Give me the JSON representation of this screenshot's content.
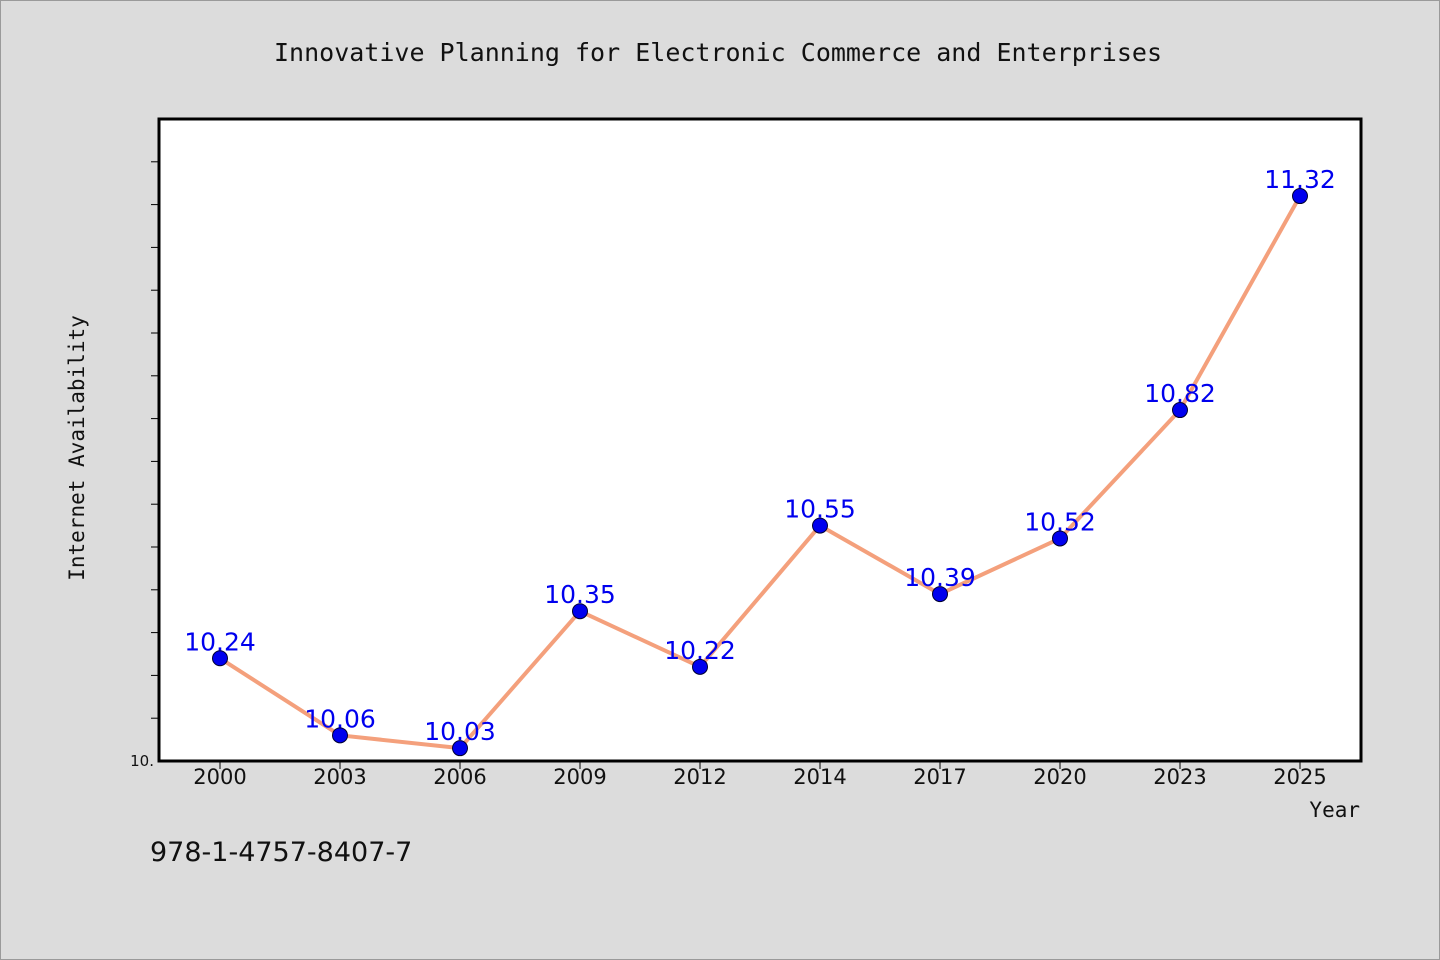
{
  "chart_data": {
    "type": "line",
    "title": "Innovative Planning for Electronic Commerce and Enterprises",
    "xlabel": "Year",
    "ylabel": "Internet Availability",
    "categories": [
      "2000",
      "2003",
      "2006",
      "2009",
      "2012",
      "2014",
      "2017",
      "2020",
      "2023",
      "2025"
    ],
    "series": [
      {
        "values": [
          10.24,
          10.06,
          10.03,
          10.35,
          10.22,
          10.55,
          10.39,
          10.52,
          10.82,
          11.32
        ],
        "labels": [
          "10.24",
          "10.06",
          "10.03",
          "10.35",
          "10.22",
          "10.55",
          "10.39",
          "10.52",
          "10.82",
          "11.32"
        ]
      }
    ],
    "ylim": [
      10.0,
      11.5
    ],
    "y_minor_tick_step": 0.1,
    "y_tick_labels": [
      "10."
    ],
    "grid": false,
    "legend": "none",
    "line_color": "#f4a07c",
    "marker_color": "#0000ee",
    "label_color": "#0000ee"
  },
  "footer": {
    "isbn": "978-1-4757-8407-7"
  }
}
